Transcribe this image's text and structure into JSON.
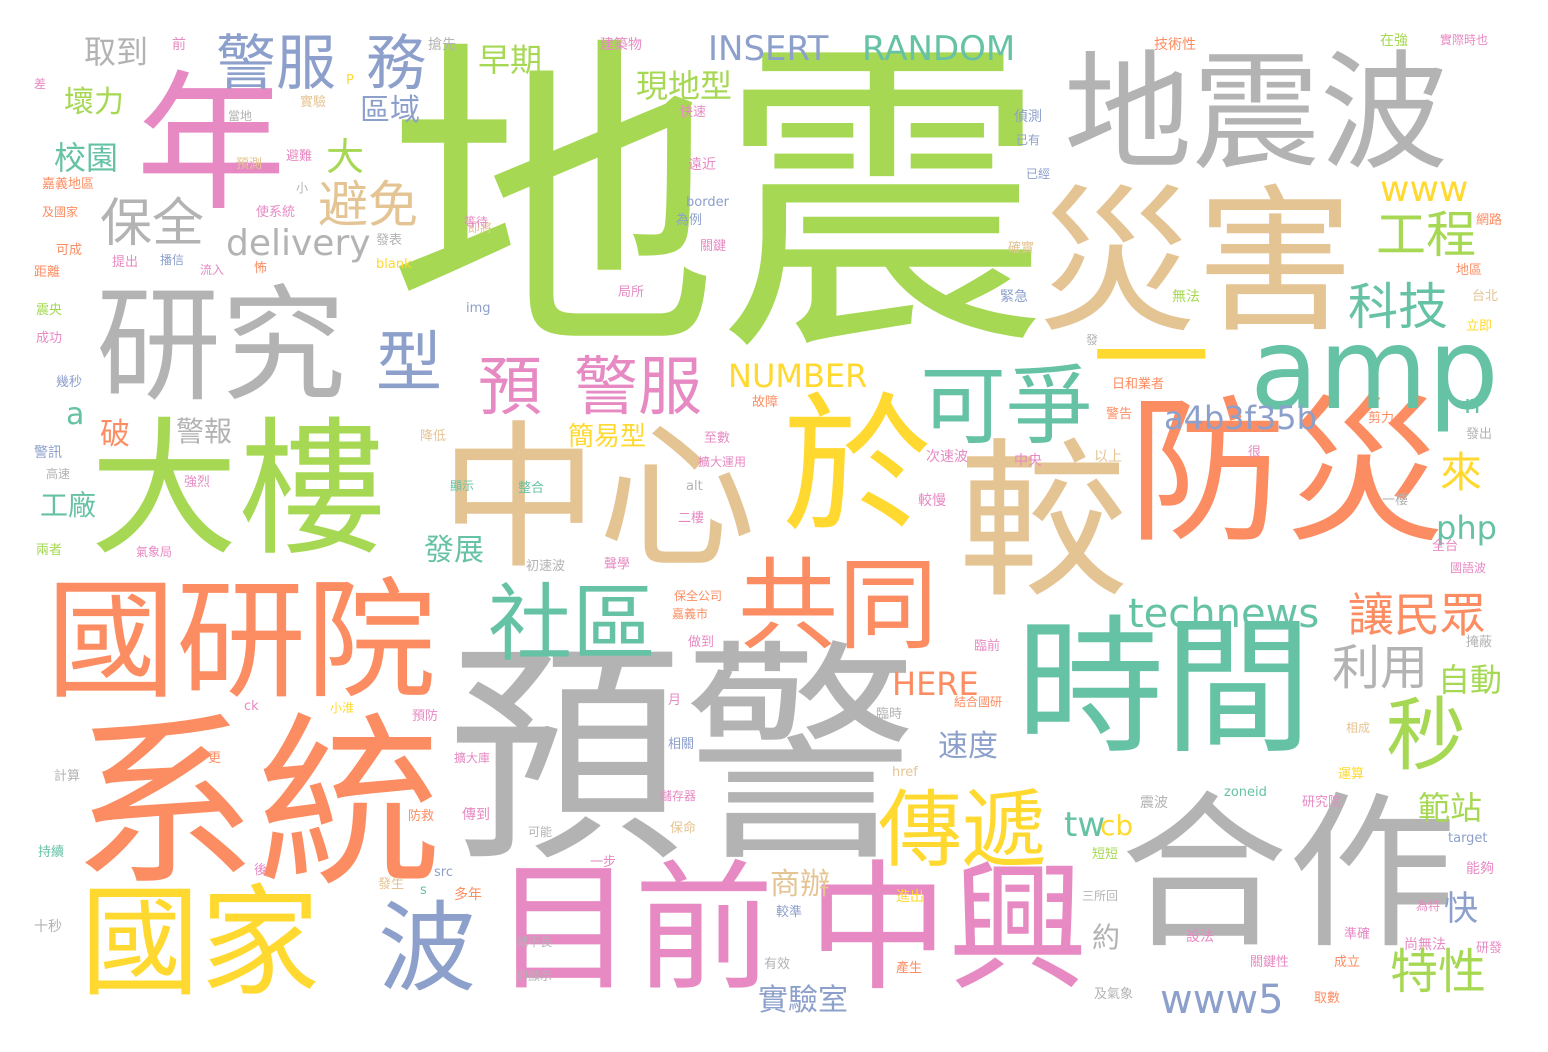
{
  "palette": {
    "green": "#a6d854",
    "salmon": "#fc8d62",
    "gray": "#b3b3b3",
    "tan": "#e5c494",
    "pink": "#e78ac3",
    "teal": "#66c2a5",
    "yellow": "#ffd92f",
    "blue": "#8da0cb",
    "background": "#ffffff"
  },
  "words": {
    "w0": "地震",
    "w1": "預警",
    "w2": "系統",
    "w3": "地震波",
    "w4": "災害",
    "w5": "防災",
    "w6": "較",
    "w7": "時間",
    "w8": "合作",
    "w9": "中心",
    "w10": "於",
    "w11": "大樓",
    "w12": "國研院",
    "w13": "年",
    "w14": "研究",
    "w15": "目前",
    "w16": "中興",
    "w17": "國家",
    "w18": "amp",
    "w19": "可爭",
    "w20": "一",
    "w21": "共同",
    "w22": "社區",
    "w23": "傳遞",
    "w24": "警服",
    "w25": "務",
    "w26": "型",
    "w27": "預",
    "w28": "警服",
    "w29": "波",
    "w30": "秒",
    "w31": "保全",
    "w32": "避免",
    "w33": "工程",
    "w34": "科技",
    "w35": "INSERT",
    "w36": "RANDOM",
    "w37": "technews",
    "w38": "讓民眾",
    "w39": "利用",
    "w40": "www5",
    "w41": "特性",
    "w42": "delivery",
    "w43": "www",
    "w44": "NUMBER",
    "w45": "a4b3f35b",
    "w46": "php",
    "w47": "tw",
    "w48": "cb",
    "w49": "現地型",
    "w50": "早期",
    "w51": "取到",
    "w52": "壞力",
    "w53": "區域",
    "w54": "校園",
    "w55": "大",
    "w56": "發展",
    "w57": "簡易型",
    "w58": "速度",
    "w59": "商辦",
    "w60": "範站",
    "w61": "自動",
    "w62": "實驗室",
    "w63": "HERE",
    "w64": "來",
    "w65": "a",
    "w66": "破",
    "w67": "警報",
    "w68": "工廠",
    "w69": "快",
    "w70": "約",
    "w71": "n",
    "w72": "前",
    "w73": "搶先",
    "w74": "建築物",
    "w75": "技術性",
    "w76": "在強",
    "w77": "實際時也",
    "w78": "差",
    "w79": "實驗",
    "w80": "快速",
    "w81": "偵測",
    "w82": "預測",
    "w83": "避難",
    "w84": "嘉義地區",
    "w85": "及國家",
    "w86": "使系統",
    "w87": "遠近",
    "w88": "border",
    "w89": "為例",
    "w90": "發表",
    "w91": "關鍵",
    "w92": "可成",
    "w93": "距離",
    "w94": "提出",
    "w95": "播信",
    "w96": "流入",
    "w97": "怖",
    "w98": "blank",
    "w99": "局所",
    "w100": "震央",
    "w101": "img",
    "w102": "成功",
    "w103": "緊急",
    "w104": "無法",
    "w105": "地區",
    "w106": "台北",
    "w107": "立即",
    "w108": "日和業者",
    "w109": "幾秒",
    "w110": "故障",
    "w111": "警告",
    "w112": "剪力",
    "w113": "警訊",
    "w114": "高速",
    "w115": "降低",
    "w116": "至數",
    "w117": "擴大運用",
    "w118": "次速波",
    "w119": "中央",
    "w120": "以上",
    "w121": "強烈",
    "w122": "顯示",
    "w123": "整合",
    "w124": "alt",
    "w125": "二樓",
    "w126": "較慢",
    "w127": "一樓",
    "w128": "發出",
    "w129": "氣象局",
    "w130": "兩者",
    "w131": "初速波",
    "w132": "聲學",
    "w133": "全台",
    "w134": "國語波",
    "w135": "保全公司",
    "w136": "嘉義市",
    "w137": "做到",
    "w138": "臨前",
    "w139": "掩蔽",
    "w140": "月",
    "w141": "小淮",
    "w142": "預防",
    "w143": "臨時",
    "w144": "結合國研",
    "w145": "ck",
    "w146": "更",
    "w147": "計算",
    "w148": "相關",
    "w149": "擴大庫",
    "w150": "href",
    "w151": "傳到",
    "w152": "防救",
    "w153": "儲存器",
    "w154": "保命",
    "w155": "震波",
    "w156": "zoneid",
    "w157": "研究院",
    "w158": "運算",
    "w159": "相成",
    "w160": "target",
    "w161": "能夠",
    "w162": "十秒",
    "w163": "持續",
    "w164": "src",
    "w165": "後",
    "w166": "發生",
    "w167": "s",
    "w168": "多年",
    "w169": "一步",
    "w170": "可能",
    "w171": "較準",
    "w172": "短短",
    "w173": "三所回",
    "w174": "進出",
    "w175": "設法",
    "w176": "準確",
    "w177": "尚無法",
    "w178": "研發",
    "w179": "減不長",
    "w180": "即顯示",
    "w181": "有效",
    "w182": "產生",
    "w183": "關鍵性",
    "w184": "成立",
    "w185": "及氣象",
    "w186": "取數",
    "w187": "為特",
    "w188": "網路",
    "w189": "已經",
    "w190": "即將",
    "w191": "確實",
    "w192": "發",
    "w193": "很",
    "w194": "當地",
    "w195": "小",
    "w196": "等待",
    "w197": "P",
    "w198": "已有"
  }
}
